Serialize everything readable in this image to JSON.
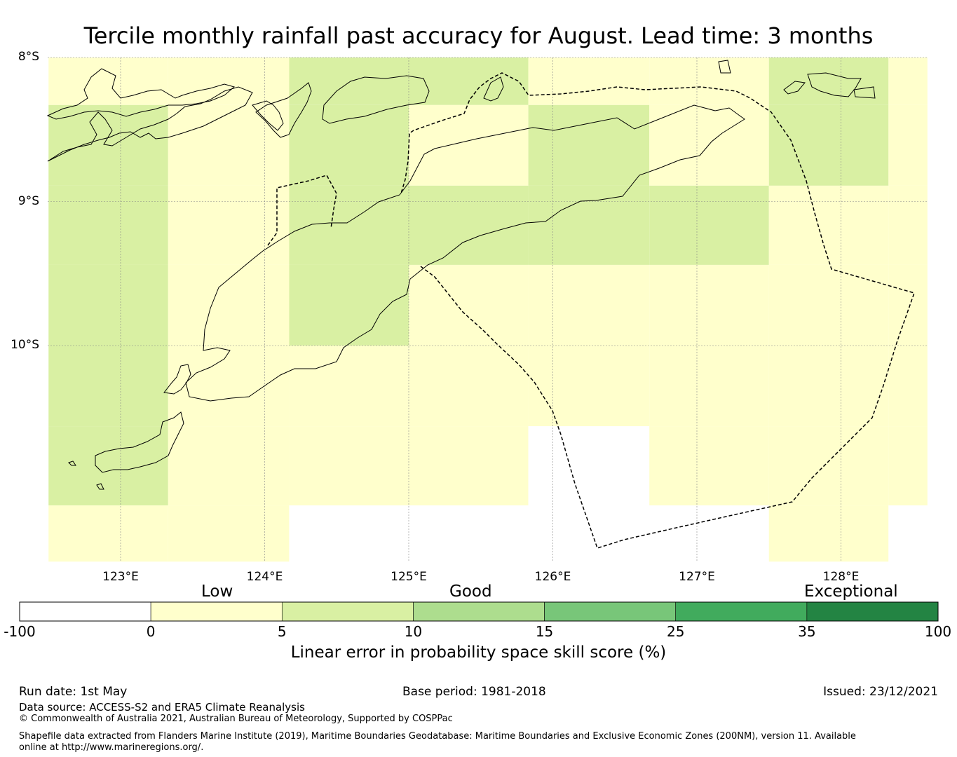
{
  "title": "Tercile monthly rainfall past accuracy for August. Lead time: 3 months",
  "map": {
    "lat_ticks": [
      {
        "value": -8,
        "label": "8°S"
      },
      {
        "value": -9,
        "label": "9°S"
      },
      {
        "value": -10,
        "label": "10°S"
      }
    ],
    "lon_ticks": [
      {
        "value": 123,
        "label": "123°E"
      },
      {
        "value": 124,
        "label": "124°E"
      },
      {
        "value": 125,
        "label": "125°E"
      },
      {
        "value": 126,
        "label": "126°E"
      },
      {
        "value": 127,
        "label": "127°E"
      },
      {
        "value": 128,
        "label": "128°E"
      }
    ],
    "extent": {
      "lon_min": 122.5,
      "lon_max": 128.6,
      "lat_min": -11.5,
      "lat_max": -8.0
    },
    "grid_cells": {
      "lon_edges": [
        122.5,
        123.33,
        124.17,
        125.0,
        125.83,
        126.67,
        127.5,
        128.33,
        128.6
      ],
      "lat_edges": [
        -8.0,
        -8.33,
        -8.89,
        -9.44,
        -10.0,
        -10.56,
        -11.11,
        -11.5
      ],
      "classes": [
        [
          1,
          1,
          2,
          2,
          1,
          1,
          2,
          1
        ],
        [
          2,
          1,
          2,
          1,
          2,
          1,
          2,
          1
        ],
        [
          2,
          1,
          2,
          2,
          2,
          2,
          1,
          1
        ],
        [
          2,
          1,
          2,
          1,
          1,
          1,
          1,
          1
        ],
        [
          2,
          1,
          1,
          1,
          1,
          1,
          1,
          1
        ],
        [
          2,
          1,
          1,
          1,
          0,
          1,
          1,
          1
        ],
        [
          1,
          1,
          0,
          0,
          0,
          0,
          1,
          0
        ]
      ]
    },
    "colors": {
      "class_0": "#ffffff",
      "class_1": "#ffffcc",
      "class_2": "#d9f0a3"
    }
  },
  "colorbar": {
    "category_labels": {
      "low": "Low",
      "good": "Good",
      "exceptional": "Exceptional"
    },
    "ticks": [
      "-100",
      "0",
      "5",
      "10",
      "15",
      "25",
      "35",
      "100"
    ],
    "colors": [
      "#ffffff",
      "#ffffcc",
      "#d9f0a3",
      "#addd8e",
      "#78c679",
      "#41ab5d",
      "#238443"
    ],
    "label": "Linear error in probability space skill score (%)"
  },
  "footer": {
    "run_date": "Run date: 1st May",
    "base_period": "Base period: 1981-2018",
    "issued": "Issued: 23/12/2021",
    "data_source": "Data source: ACCESS-S2 and ERA5 Climate Reanalysis",
    "copyright": "© Commonwealth of Australia 2021, Australian Bureau of Meteorology, Supported by COSPPac",
    "shapefile": "Shapefile data extracted from Flanders Marine Institute (2019), Maritime Boundaries Geodatabase: Maritime Boundaries and Exclusive Economic Zones (200NM), version 11. Available online at http://www.marineregions.org/."
  }
}
